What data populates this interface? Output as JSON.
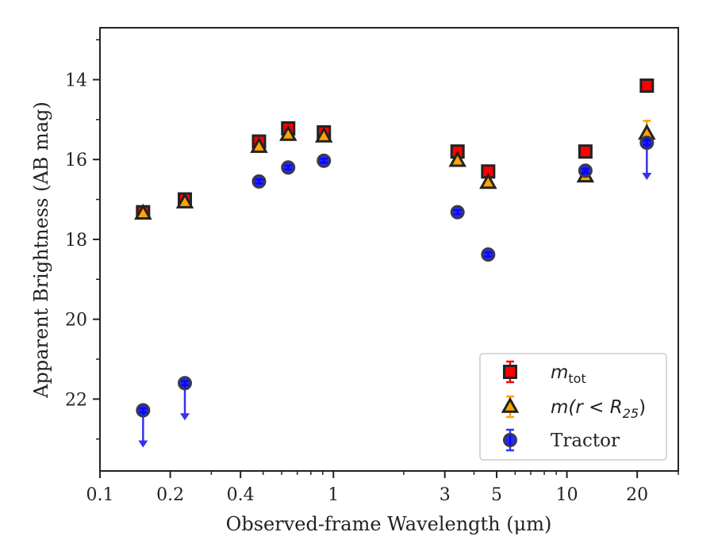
{
  "chart_data": {
    "type": "scatter",
    "xlabel": "Observed-frame Wavelength (μm)",
    "ylabel": "Apparent Brightness (AB mag)",
    "x_scale": "log",
    "y_inverted": true,
    "xlim": [
      0.1,
      30
    ],
    "ylim": [
      23.8,
      12.7
    ],
    "x_ticks": [
      {
        "value": 0.1,
        "label": "0.1"
      },
      {
        "value": 0.2,
        "label": "0.2"
      },
      {
        "value": 0.4,
        "label": "0.4"
      },
      {
        "value": 1,
        "label": "1"
      },
      {
        "value": 3,
        "label": "3"
      },
      {
        "value": 5,
        "label": "5"
      },
      {
        "value": 10,
        "label": "10"
      },
      {
        "value": 20,
        "label": "20"
      }
    ],
    "y_ticks": [
      {
        "value": 14,
        "label": "14"
      },
      {
        "value": 16,
        "label": "16"
      },
      {
        "value": 18,
        "label": "18"
      },
      {
        "value": 20,
        "label": "20"
      },
      {
        "value": 22,
        "label": "22"
      }
    ],
    "grid": false,
    "legend_position": "lower-right",
    "series": [
      {
        "name": "m_tot",
        "label_main": "m",
        "label_sub": "tot",
        "marker": "square",
        "color": "#ff0000",
        "edge": "#222222",
        "errcolor": "#ff0000",
        "points": [
          {
            "x": 0.153,
            "y": 17.32,
            "err": 0.06
          },
          {
            "x": 0.231,
            "y": 17.0,
            "err": 0.05
          },
          {
            "x": 0.48,
            "y": 15.55,
            "err": 0.08
          },
          {
            "x": 0.64,
            "y": 15.22,
            "err": 0.08
          },
          {
            "x": 0.91,
            "y": 15.32,
            "err": 0.1
          },
          {
            "x": 3.4,
            "y": 15.8,
            "err": 0.05
          },
          {
            "x": 4.6,
            "y": 16.3,
            "err": 0.05
          },
          {
            "x": 12.0,
            "y": 15.8,
            "err": 0.05
          },
          {
            "x": 22.0,
            "y": 14.15,
            "err": 0.05
          }
        ]
      },
      {
        "name": "m(r<R25)",
        "label_main": "m(r < R",
        "label_sub": "25",
        "label_end": ")",
        "marker": "triangle",
        "color": "#ffa500",
        "edge": "#222222",
        "errcolor": "#ffa500",
        "points": [
          {
            "x": 0.153,
            "y": 17.35,
            "err": 0.05
          },
          {
            "x": 0.231,
            "y": 17.07,
            "err": 0.05
          },
          {
            "x": 0.48,
            "y": 15.68,
            "err": 0.05
          },
          {
            "x": 0.64,
            "y": 15.38,
            "err": 0.05
          },
          {
            "x": 0.91,
            "y": 15.42,
            "err": 0.05
          },
          {
            "x": 3.4,
            "y": 16.03,
            "err": 0.05
          },
          {
            "x": 4.6,
            "y": 16.58,
            "err": 0.05
          },
          {
            "x": 12.0,
            "y": 16.42,
            "err": 0.05
          },
          {
            "x": 22.0,
            "y": 15.35,
            "err": 0.32
          }
        ]
      },
      {
        "name": "Tractor",
        "label_main": "Tractor",
        "marker": "circle",
        "color": "#0000ff",
        "edge": "#222222",
        "errcolor": "#3333ff",
        "points": [
          {
            "x": 0.153,
            "y": 22.28,
            "err": 0.05,
            "upper_limit": true
          },
          {
            "x": 0.231,
            "y": 21.6,
            "err": 0.05,
            "upper_limit": true
          },
          {
            "x": 0.48,
            "y": 16.55,
            "err": 0.05
          },
          {
            "x": 0.64,
            "y": 16.2,
            "err": 0.05
          },
          {
            "x": 0.91,
            "y": 16.03,
            "err": 0.05
          },
          {
            "x": 3.4,
            "y": 17.32,
            "err": 0.05
          },
          {
            "x": 4.6,
            "y": 18.38,
            "err": 0.05
          },
          {
            "x": 12.0,
            "y": 16.28,
            "err": 0.05
          },
          {
            "x": 22.0,
            "y": 15.58,
            "err": 0.05,
            "upper_limit": true
          }
        ]
      }
    ]
  }
}
